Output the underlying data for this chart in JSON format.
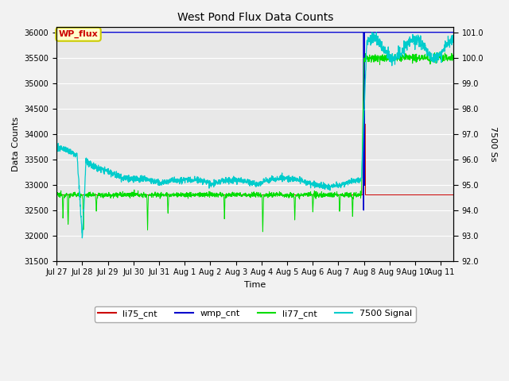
{
  "title": "West Pond Flux Data Counts",
  "xlabel": "Time",
  "ylabel_left": "Data Counts",
  "ylabel_right": "7500 Ss",
  "ylim_left": [
    31500,
    36100
  ],
  "ylim_right": [
    92.0,
    101.2
  ],
  "annotation_text": "WP_flux",
  "annotation_color": "#cc0000",
  "annotation_bg": "#ffffcc",
  "annotation_border": "#cccc00",
  "plot_bg": "#e8e8e8",
  "grid_color": "white",
  "xtick_labels": [
    "Jul 27",
    "Jul 28",
    "Jul 29",
    "Jul 30",
    "Jul 31",
    "Aug 1",
    "Aug 2",
    "Aug 3",
    "Aug 4",
    "Aug 5",
    "Aug 6",
    "Aug 7",
    "Aug 8",
    "Aug 9",
    "Aug 10",
    "Aug 11"
  ],
  "xtick_positions": [
    0,
    1,
    2,
    3,
    4,
    5,
    6,
    7,
    8,
    9,
    10,
    11,
    12,
    13,
    14,
    15
  ],
  "ytick_left": [
    31500,
    32000,
    32500,
    33000,
    33500,
    34000,
    34500,
    35000,
    35500,
    36000
  ],
  "ytick_right": [
    92.0,
    93.0,
    94.0,
    95.0,
    96.0,
    97.0,
    98.0,
    99.0,
    100.0,
    101.0
  ],
  "legend_entries": [
    "li75_cnt",
    "wmp_cnt",
    "li77_cnt",
    "7500 Signal"
  ],
  "wmp_cnt_color": "#0000cc",
  "li77_cnt_color": "#00dd00",
  "signal_7500_color": "#00cccc",
  "li75_cnt_color": "#cc0000",
  "figsize": [
    6.4,
    4.8
  ],
  "dpi": 100
}
